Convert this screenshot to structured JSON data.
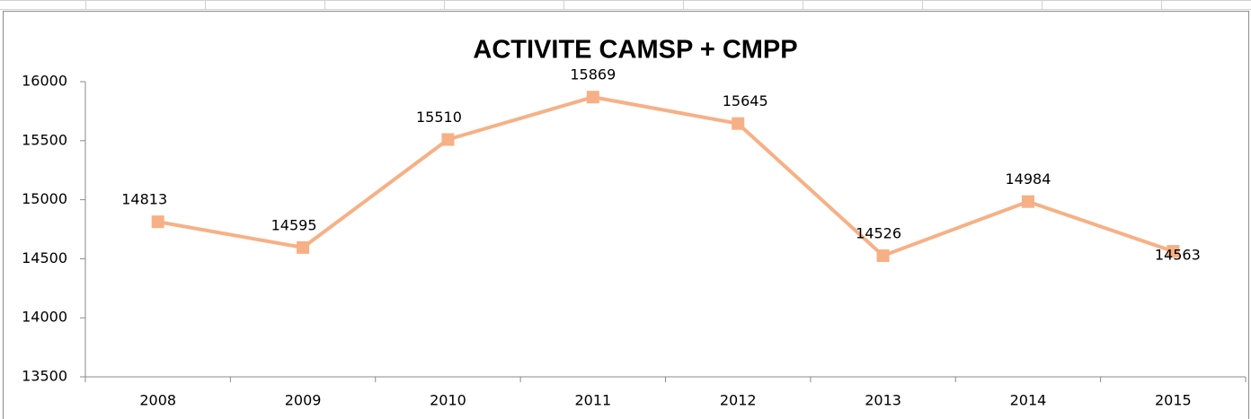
{
  "chart_data": {
    "type": "line",
    "title": "ACTIVITE CAMSP + CMPP",
    "categories": [
      "2008",
      "2009",
      "2010",
      "2011",
      "2012",
      "2013",
      "2014",
      "2015"
    ],
    "series": [
      {
        "name": "ACTIVITE CAMSP + CMPP",
        "color": "#f7b085",
        "values": [
          14813,
          14595,
          15510,
          15869,
          15645,
          14526,
          14984,
          14563
        ]
      }
    ],
    "ylim": [
      13500,
      16000
    ],
    "yticks": [
      13500,
      14000,
      14500,
      15000,
      15500,
      16000
    ]
  }
}
